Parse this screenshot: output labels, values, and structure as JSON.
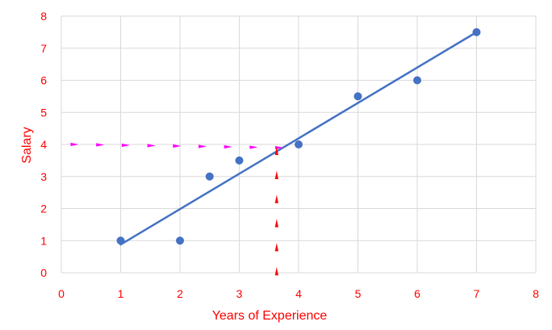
{
  "chart_data": {
    "type": "scatter",
    "title": "",
    "xlabel": "Years of Experience",
    "ylabel": "Salary",
    "xlim": [
      0,
      8
    ],
    "ylim": [
      0,
      8
    ],
    "x_ticks": [
      "0",
      "1",
      "2",
      "3",
      "4",
      "5",
      "6",
      "7",
      "8"
    ],
    "y_ticks": [
      "0",
      "1",
      "2",
      "3",
      "4",
      "5",
      "6",
      "7",
      "8"
    ],
    "grid": true,
    "legend": "none",
    "series": [
      {
        "points": [
          {
            "x": 1,
            "y": 1
          },
          {
            "x": 2,
            "y": 1
          },
          {
            "x": 2.5,
            "y": 3
          },
          {
            "x": 3,
            "y": 3.5
          },
          {
            "x": 4,
            "y": 4
          },
          {
            "x": 5,
            "y": 5.5
          },
          {
            "x": 6,
            "y": 6
          },
          {
            "x": 7,
            "y": 7.5
          }
        ],
        "color": "#4472c4"
      }
    ],
    "trendline": {
      "x": [
        1,
        7
      ],
      "y": [
        0.88,
        7.5
      ],
      "color": "#4472c4"
    },
    "annotations": [
      {
        "type": "arrow-guide-horizontal",
        "from": {
          "x": 0.2,
          "y": 4
        },
        "to": {
          "x": 3.65,
          "y": 3.9
        },
        "color": "#ff00ff"
      },
      {
        "type": "arrow-guide-vertical",
        "from": {
          "x": 3.63,
          "y": 0
        },
        "to": {
          "x": 3.63,
          "y": 3.75
        },
        "color": "#ff0000"
      }
    ],
    "colors": {
      "grid": "#d9d9d9",
      "tick_text": "#ff0000",
      "axis_title": "#ff0000"
    }
  }
}
